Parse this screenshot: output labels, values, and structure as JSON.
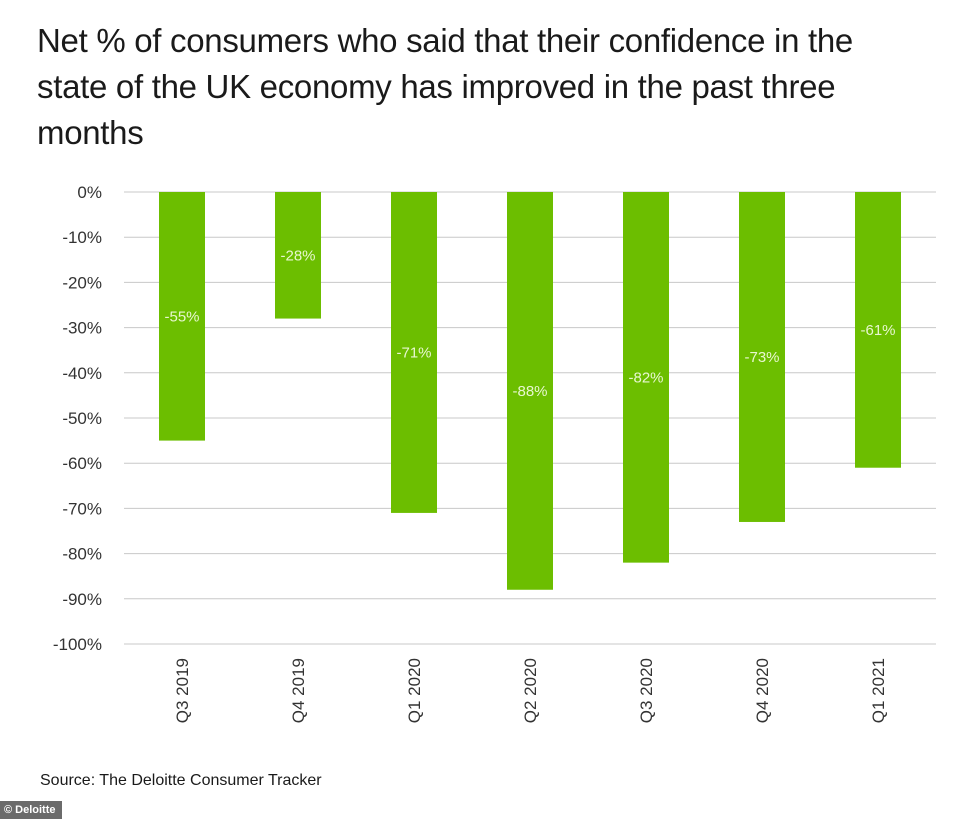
{
  "chart_data": {
    "type": "bar",
    "title": "Net % of consumers who said that their confidence in the state of the UK economy has improved in the past three months",
    "categories": [
      "Q3 2019",
      "Q4 2019",
      "Q1 2020",
      "Q2 2020",
      "Q3 2020",
      "Q4 2020",
      "Q1 2021"
    ],
    "values": [
      -55,
      -28,
      -71,
      -88,
      -82,
      -73,
      -61
    ],
    "data_labels": [
      "-55%",
      "-28%",
      "-71%",
      "-88%",
      "-82%",
      "-73%",
      "-61%"
    ],
    "ylim": [
      -100,
      0
    ],
    "yticks": [
      0,
      -10,
      -20,
      -30,
      -40,
      -50,
      -60,
      -70,
      -80,
      -90,
      -100
    ],
    "ytick_labels": [
      "0%",
      "-10%",
      "-20%",
      "-30%",
      "-40%",
      "-50%",
      "-60%",
      "-70%",
      "-80%",
      "-90%",
      "-100%"
    ],
    "xlabel": "",
    "ylabel": "",
    "grid": true,
    "bar_color": "#6cbe00",
    "label_color": "#e8f7d0"
  },
  "source": "Source: The Deloitte Consumer Tracker",
  "credit": "© Deloitte"
}
